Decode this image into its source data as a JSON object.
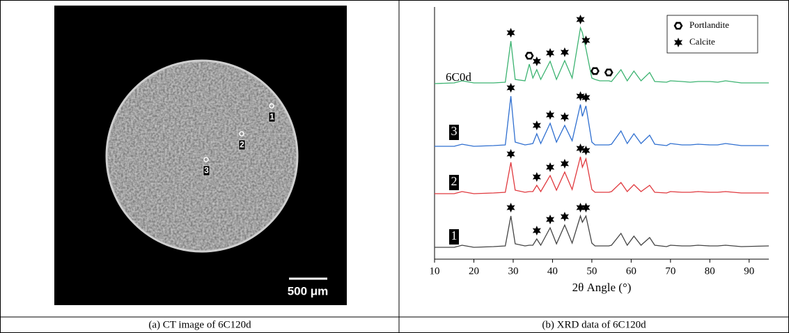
{
  "captions": [
    "(a) CT image of 6C120d",
    "(b) XRD data of 6C120d"
  ],
  "ct_image": {
    "points": [
      "1",
      "2",
      "3"
    ],
    "scale_bar": "500 μm"
  },
  "chart_data": {
    "type": "line",
    "xlabel": "2θ Angle (°)",
    "xlim": [
      10,
      95
    ],
    "xticks": [
      10,
      20,
      30,
      40,
      50,
      60,
      70,
      80,
      90
    ],
    "x": [
      10,
      15,
      17,
      20,
      25,
      28,
      29.4,
      30.5,
      33,
      34.1,
      35,
      36,
      37,
      39.4,
      41,
      43.1,
      45,
      47.1,
      47.6,
      48.5,
      50,
      50.8,
      52,
      54.3,
      55,
      57.4,
      59,
      60.7,
      62.5,
      64.7,
      66,
      69,
      70,
      72.9,
      75,
      77,
      80,
      82,
      84,
      88,
      95
    ],
    "phases": [
      {
        "name": "Portlandite",
        "marker": "hexagon"
      },
      {
        "name": "Calcite",
        "marker": "star"
      }
    ],
    "series": [
      {
        "name": "6C0d",
        "color": "#3cb371",
        "values": [
          2,
          3,
          6,
          3,
          3,
          4,
          63,
          8,
          6,
          30,
          10,
          22,
          8,
          34,
          8,
          35,
          10,
          82,
          75,
          52,
          10,
          8,
          6,
          6,
          5,
          22,
          6,
          20,
          6,
          18,
          5,
          4,
          6,
          5,
          4,
          5,
          5,
          4,
          6,
          3,
          3
        ],
        "peaks": [
          [
            34.1,
            50.8,
            54.3
          ],
          [
            29.4,
            36,
            39.4,
            43.1,
            47.1,
            48.5
          ]
        ]
      },
      {
        "name": "3",
        "color": "#2f6fd0",
        "values": [
          2,
          2,
          5,
          2,
          3,
          4,
          74,
          8,
          4,
          5,
          6,
          20,
          6,
          35,
          8,
          32,
          10,
          62,
          45,
          60,
          8,
          4,
          4,
          4,
          5,
          24,
          6,
          20,
          6,
          18,
          5,
          3,
          6,
          4,
          4,
          5,
          4,
          4,
          6,
          3,
          3
        ],
        "peaks": [
          [],
          [
            29.4,
            36,
            39.4,
            43.1,
            47.1,
            48.5
          ]
        ]
      },
      {
        "name": "2",
        "color": "#e0393e",
        "values": [
          2,
          2,
          5,
          2,
          3,
          4,
          47,
          7,
          4,
          5,
          5,
          14,
          5,
          28,
          7,
          33,
          8,
          55,
          40,
          52,
          8,
          4,
          4,
          4,
          5,
          18,
          5,
          15,
          5,
          14,
          4,
          3,
          5,
          4,
          4,
          5,
          4,
          4,
          5,
          3,
          3
        ],
        "peaks": [
          [],
          [
            29.4,
            36,
            39.4,
            43.1,
            47.1,
            48.5
          ]
        ]
      },
      {
        "name": "1",
        "color": "#444444",
        "values": [
          2,
          2,
          5,
          2,
          3,
          4,
          47,
          7,
          4,
          5,
          5,
          14,
          5,
          30,
          7,
          34,
          8,
          47,
          38,
          47,
          8,
          4,
          4,
          4,
          5,
          22,
          5,
          18,
          5,
          16,
          5,
          3,
          5,
          4,
          4,
          5,
          4,
          4,
          5,
          3,
          4
        ],
        "peaks": [
          [],
          [
            29.4,
            36,
            39.4,
            43.1,
            47.1,
            48.5
          ]
        ]
      }
    ]
  }
}
